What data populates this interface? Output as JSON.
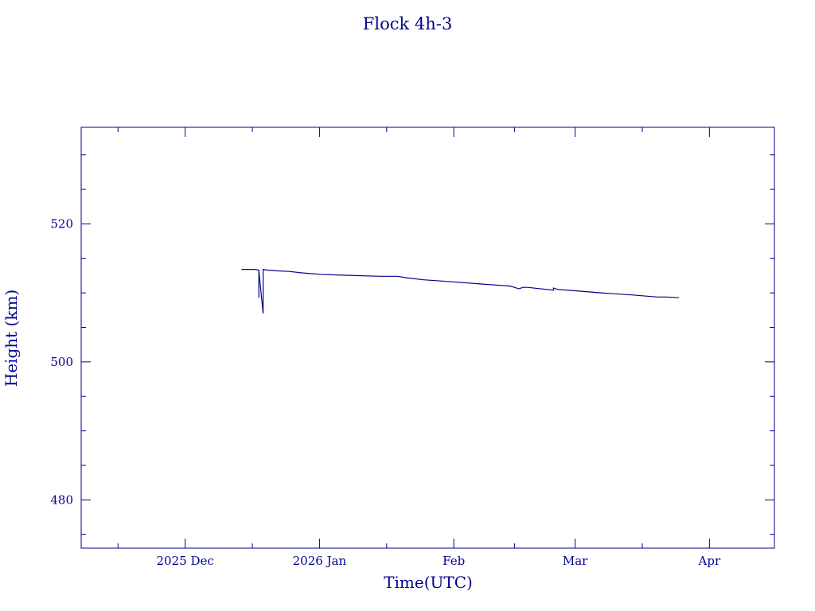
{
  "chart_data": {
    "type": "line",
    "title": "Flock 4h-3",
    "xlabel": "Time(UTC)",
    "ylabel": "Height (km)",
    "color": "#00008b",
    "grid": false,
    "xlim": [
      "2025-11-07",
      "2026-04-16"
    ],
    "ylim": [
      473,
      534
    ],
    "yticks": [
      480,
      500,
      520
    ],
    "xticks": [
      {
        "date": "2025-12-01",
        "label": "2025 Dec"
      },
      {
        "date": "2026-01-01",
        "label": "2026 Jan"
      },
      {
        "date": "2026-02-01",
        "label": "Feb"
      },
      {
        "date": "2026-03-01",
        "label": "Mar"
      },
      {
        "date": "2026-04-01",
        "label": "Apr"
      }
    ],
    "series": [
      {
        "x": [
          "2025-12-14",
          "2025-12-15",
          "2025-12-16",
          "2025-12-17",
          "2025-12-18",
          "2025-12-18",
          "2025-12-18",
          "2025-12-19",
          "2025-12-19",
          "2025-12-19",
          "2025-12-20",
          "2025-12-22",
          "2025-12-25",
          "2025-12-28",
          "2026-01-01",
          "2026-01-05",
          "2026-01-10",
          "2026-01-15",
          "2026-01-19",
          "2026-01-21",
          "2026-01-25",
          "2026-02-01",
          "2026-02-07",
          "2026-02-14",
          "2026-02-16",
          "2026-02-17",
          "2026-02-18",
          "2026-02-24",
          "2026-02-24",
          "2026-02-25",
          "2026-03-01",
          "2026-03-07",
          "2026-03-14",
          "2026-03-20",
          "2026-03-22",
          "2026-03-25"
        ],
        "y": [
          513.4,
          513.4,
          513.4,
          513.4,
          513.3,
          509.3,
          513.3,
          507.0,
          513.4,
          513.4,
          513.3,
          513.2,
          513.1,
          512.9,
          512.7,
          512.6,
          512.5,
          512.4,
          512.4,
          512.2,
          511.9,
          511.6,
          511.3,
          511.0,
          510.6,
          510.8,
          510.8,
          510.4,
          510.7,
          510.5,
          510.3,
          510.0,
          509.7,
          509.4,
          509.4,
          509.3
        ]
      }
    ]
  }
}
